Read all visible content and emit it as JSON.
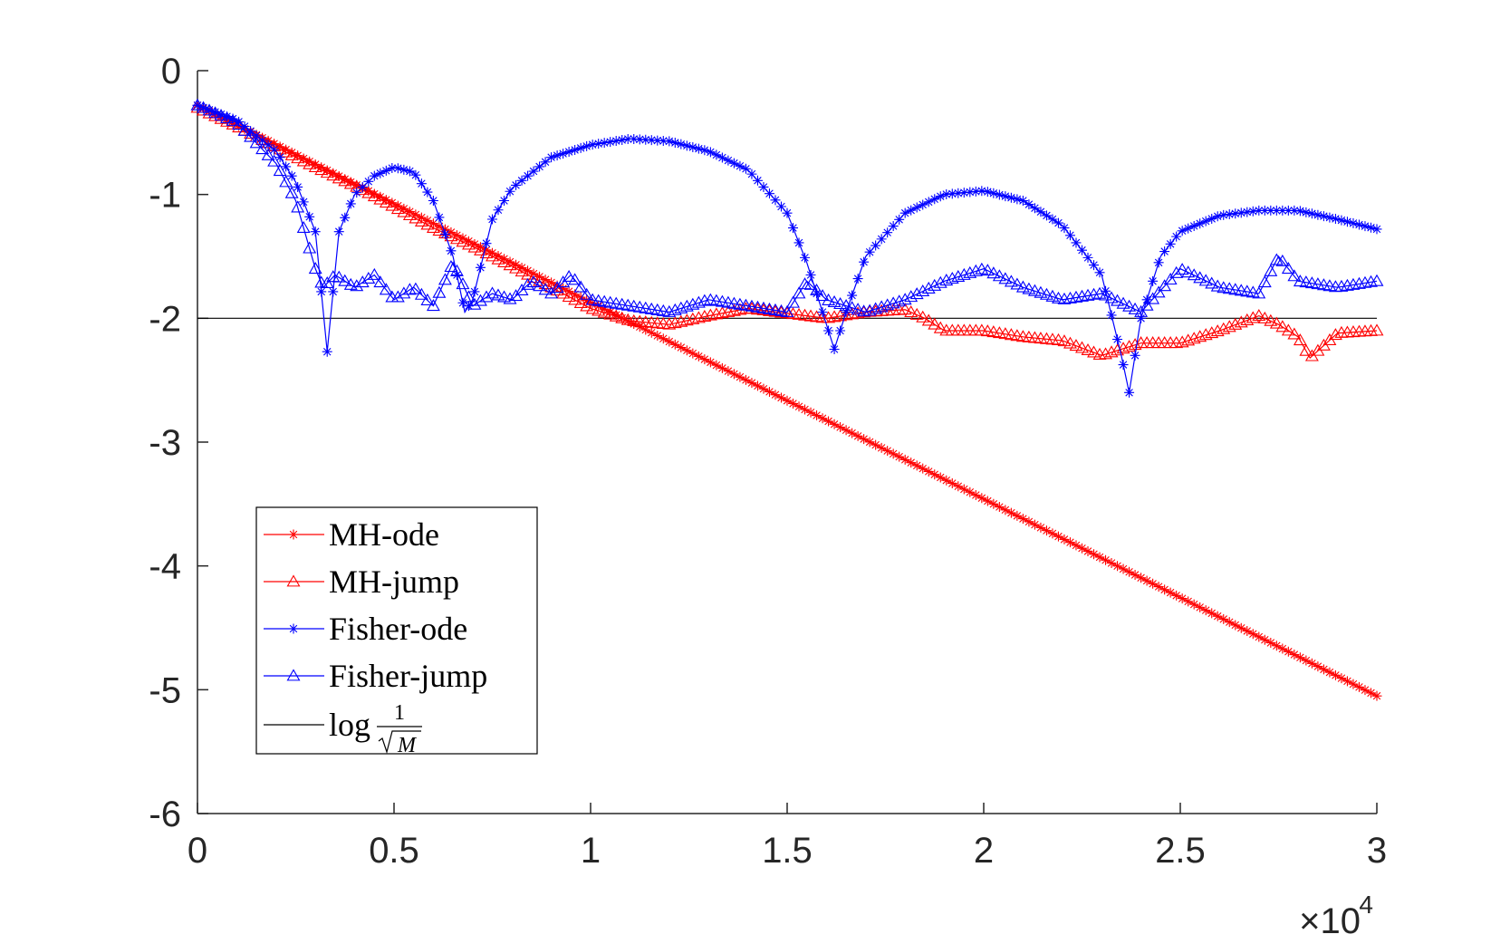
{
  "chart_data": {
    "type": "line",
    "title": "",
    "xlabel": "",
    "ylabel": "",
    "xlim": [
      0,
      30000
    ],
    "ylim": [
      -6,
      0
    ],
    "x_ticks": [
      0,
      5000,
      10000,
      15000,
      20000,
      25000,
      30000
    ],
    "x_tick_labels": [
      "0",
      "0.5",
      "1",
      "1.5",
      "2",
      "2.5",
      "3"
    ],
    "x_exponent_label": "×10",
    "x_exponent_power": "4",
    "y_ticks": [
      0,
      -1,
      -2,
      -3,
      -4,
      -5,
      -6
    ],
    "y_tick_labels": [
      "0",
      "-1",
      "-2",
      "-3",
      "-4",
      "-5",
      "-6"
    ],
    "grid": false,
    "legend_position": "lower-left",
    "reference_line": {
      "name": "log 1/√M",
      "y": -2,
      "color": "#000000"
    },
    "legend": {
      "entries": [
        "MH-ode",
        "MH-jump",
        "Fisher-ode",
        "Fisher-jump"
      ],
      "ref_prefix": "log",
      "ref_num": "1",
      "ref_den": "M"
    },
    "series": [
      {
        "name": "MH-ode",
        "color": "#ff0000",
        "marker": "star",
        "x": [
          0,
          30000
        ],
        "values": [
          -0.28,
          -5.05
        ]
      },
      {
        "name": "MH-jump",
        "color": "#ff0000",
        "marker": "triangle",
        "x": [
          0,
          1000,
          2000,
          3000,
          4000,
          5000,
          6000,
          7000,
          8000,
          9000,
          10000,
          11000,
          12000,
          13000,
          14000,
          15000,
          16000,
          17000,
          18000,
          18500,
          19000,
          20000,
          21000,
          22000,
          23000,
          24000,
          25000,
          26000,
          27000,
          27500,
          28000,
          28300,
          29000,
          30000
        ],
        "values": [
          -0.3,
          -0.45,
          -0.62,
          -0.78,
          -0.93,
          -1.1,
          -1.27,
          -1.42,
          -1.58,
          -1.75,
          -1.92,
          -2.02,
          -2.05,
          -1.98,
          -1.92,
          -1.96,
          -2.0,
          -1.95,
          -1.93,
          -2.0,
          -2.1,
          -2.1,
          -2.15,
          -2.18,
          -2.3,
          -2.2,
          -2.2,
          -2.1,
          -1.98,
          -2.05,
          -2.15,
          -2.32,
          -2.12,
          -2.1
        ]
      },
      {
        "name": "Fisher-ode",
        "color": "#0000ff",
        "marker": "star",
        "x": [
          0,
          1000,
          2000,
          2500,
          3000,
          3300,
          3600,
          4000,
          4500,
          5000,
          5500,
          6000,
          6500,
          6800,
          7000,
          7500,
          8000,
          9000,
          10000,
          11000,
          12000,
          13000,
          14000,
          15000,
          15500,
          16000,
          16200,
          16500,
          17000,
          18000,
          19000,
          20000,
          21000,
          22000,
          23000,
          23500,
          23700,
          24000,
          24500,
          25000,
          26000,
          27000,
          28000,
          29000,
          30000
        ],
        "values": [
          -0.28,
          -0.4,
          -0.65,
          -0.9,
          -1.3,
          -2.27,
          -1.3,
          -1.0,
          -0.85,
          -0.78,
          -0.82,
          -1.05,
          -1.5,
          -1.95,
          -1.85,
          -1.2,
          -0.95,
          -0.7,
          -0.6,
          -0.55,
          -0.57,
          -0.65,
          -0.8,
          -1.15,
          -1.55,
          -2.05,
          -2.25,
          -1.95,
          -1.5,
          -1.15,
          -1.0,
          -0.97,
          -1.05,
          -1.25,
          -1.65,
          -2.3,
          -2.6,
          -2.0,
          -1.5,
          -1.3,
          -1.17,
          -1.13,
          -1.13,
          -1.2,
          -1.28
        ]
      },
      {
        "name": "Fisher-jump",
        "color": "#0000ff",
        "marker": "triangle",
        "x": [
          0,
          1000,
          2000,
          2500,
          3000,
          3200,
          3500,
          4000,
          4500,
          5000,
          5500,
          6000,
          6500,
          7000,
          7500,
          8000,
          8500,
          9000,
          9500,
          10000,
          11000,
          12000,
          13000,
          14000,
          15000,
          15500,
          16000,
          17000,
          18000,
          19000,
          20000,
          21000,
          22000,
          23000,
          24000,
          25000,
          26000,
          27000,
          27500,
          28000,
          29000,
          30000
        ],
        "values": [
          -0.28,
          -0.42,
          -0.75,
          -1.05,
          -1.6,
          -1.75,
          -1.65,
          -1.75,
          -1.65,
          -1.85,
          -1.75,
          -1.9,
          -1.55,
          -1.9,
          -1.8,
          -1.85,
          -1.7,
          -1.8,
          -1.65,
          -1.85,
          -1.9,
          -1.95,
          -1.85,
          -1.9,
          -1.95,
          -1.7,
          -1.85,
          -1.95,
          -1.85,
          -1.7,
          -1.6,
          -1.75,
          -1.85,
          -1.8,
          -1.95,
          -1.6,
          -1.75,
          -1.8,
          -1.5,
          -1.7,
          -1.75,
          -1.7
        ]
      }
    ]
  }
}
